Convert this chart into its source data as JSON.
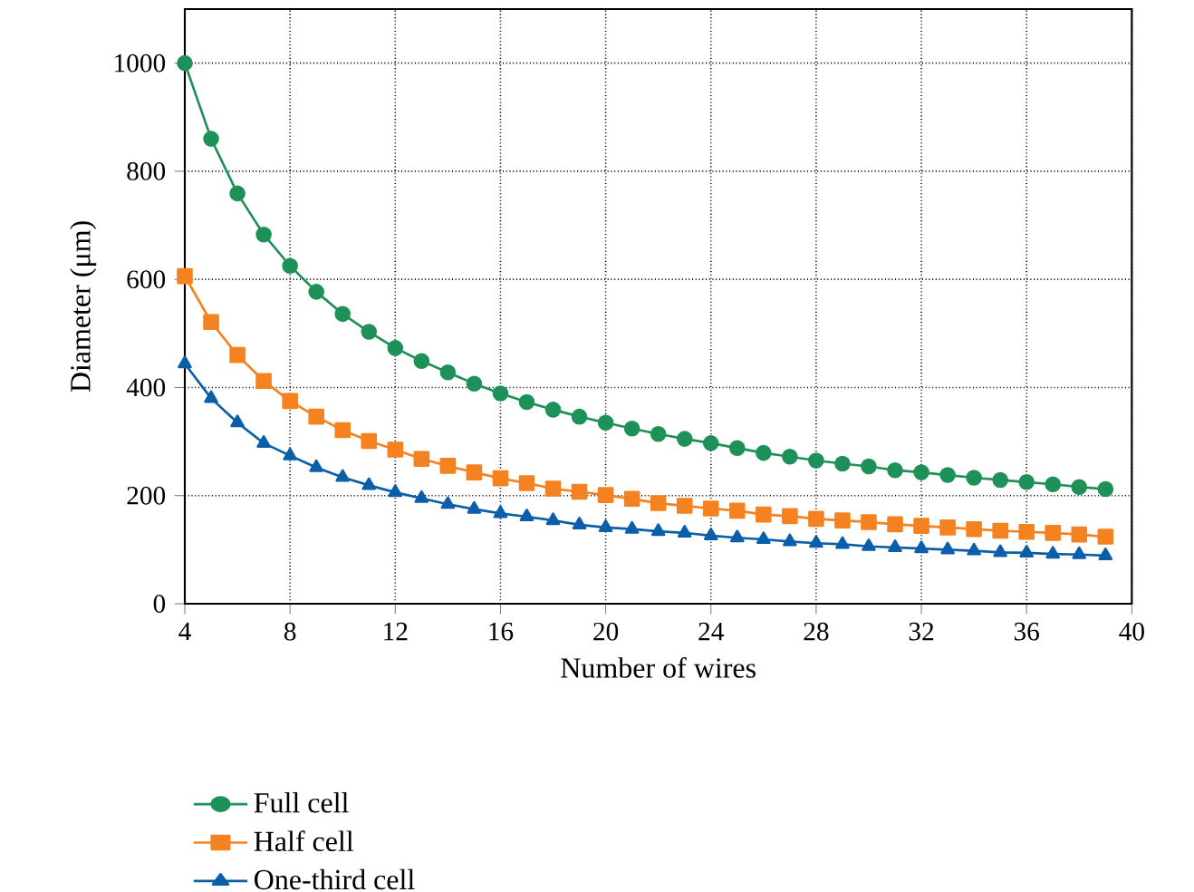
{
  "chart_data": {
    "type": "line",
    "xlabel": "Number of wires",
    "ylabel": "Diameter (μm)",
    "x": [
      4,
      5,
      6,
      7,
      8,
      9,
      10,
      11,
      12,
      13,
      14,
      15,
      16,
      17,
      18,
      19,
      20,
      21,
      22,
      23,
      24,
      25,
      26,
      27,
      28,
      29,
      30,
      31,
      32,
      33,
      34,
      35,
      36,
      37,
      38,
      39
    ],
    "xlim": [
      4,
      40
    ],
    "xticks": [
      4,
      8,
      12,
      16,
      20,
      24,
      28,
      32,
      36,
      40
    ],
    "ylim": [
      0,
      1100
    ],
    "yticks": [
      0,
      200,
      400,
      600,
      800,
      1000
    ],
    "grid": true,
    "legend": "bottom left",
    "series": [
      {
        "name": "Full cell",
        "color": "#1e9158",
        "marker": "circle",
        "values": [
          1000,
          860,
          759,
          683,
          625,
          577,
          536,
          503,
          473,
          449,
          428,
          407,
          389,
          373,
          359,
          346,
          335,
          324,
          314,
          305,
          297,
          288,
          279,
          272,
          265,
          259,
          254,
          247,
          243,
          238,
          233,
          229,
          225,
          221,
          216,
          212
        ]
      },
      {
        "name": "Half cell",
        "color": "#f58220",
        "marker": "square",
        "values": [
          606,
          521,
          460,
          412,
          375,
          346,
          321,
          301,
          285,
          268,
          255,
          243,
          232,
          223,
          213,
          207,
          201,
          194,
          186,
          181,
          176,
          172,
          165,
          162,
          157,
          154,
          151,
          147,
          144,
          141,
          138,
          135,
          133,
          131,
          128,
          124
        ]
      },
      {
        "name": "One-third cell",
        "color": "#0a5fa8",
        "marker": "triangle",
        "values": [
          444,
          380,
          335,
          297,
          274,
          252,
          234,
          219,
          206,
          195,
          184,
          175,
          167,
          161,
          154,
          146,
          141,
          138,
          134,
          131,
          126,
          122,
          119,
          115,
          112,
          110,
          106,
          104,
          102,
          100,
          98,
          95,
          94,
          92,
          91,
          89
        ]
      }
    ]
  }
}
